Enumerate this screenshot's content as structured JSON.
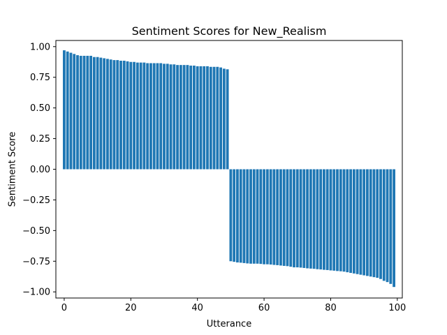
{
  "chart_data": {
    "type": "bar",
    "title": "Sentiment Scores for New_Realism",
    "xlabel": "Utterance",
    "ylabel": "Sentiment Score",
    "xlim": [
      -2.5,
      101.5
    ],
    "ylim": [
      -1.05,
      1.05
    ],
    "x_ticks": [
      0,
      20,
      40,
      60,
      80,
      100
    ],
    "y_ticks": [
      1.0,
      0.75,
      0.5,
      0.25,
      0.0,
      -0.25,
      -0.5,
      -0.75,
      -1.0
    ],
    "x_tick_labels": [
      "0",
      "20",
      "40",
      "60",
      "80",
      "100"
    ],
    "y_tick_labels": [
      "1.00",
      "0.75",
      "0.50",
      "0.25",
      "0.00",
      "−0.25",
      "−0.50",
      "−0.75",
      "−1.00"
    ],
    "bar_color": "#1f77b4",
    "grid": false,
    "legend": "none",
    "x": [
      0,
      1,
      2,
      3,
      4,
      5,
      6,
      7,
      8,
      9,
      10,
      11,
      12,
      13,
      14,
      15,
      16,
      17,
      18,
      19,
      20,
      21,
      22,
      23,
      24,
      25,
      26,
      27,
      28,
      29,
      30,
      31,
      32,
      33,
      34,
      35,
      36,
      37,
      38,
      39,
      40,
      41,
      42,
      43,
      44,
      45,
      46,
      47,
      48,
      49,
      50,
      51,
      52,
      53,
      54,
      55,
      56,
      57,
      58,
      59,
      60,
      61,
      62,
      63,
      64,
      65,
      66,
      67,
      68,
      69,
      70,
      71,
      72,
      73,
      74,
      75,
      76,
      77,
      78,
      79,
      80,
      81,
      82,
      83,
      84,
      85,
      86,
      87,
      88,
      89,
      90,
      91,
      92,
      93,
      94,
      95,
      96,
      97,
      98,
      99
    ],
    "values": [
      0.97,
      0.96,
      0.95,
      0.94,
      0.93,
      0.925,
      0.925,
      0.925,
      0.925,
      0.915,
      0.915,
      0.91,
      0.905,
      0.9,
      0.895,
      0.89,
      0.89,
      0.885,
      0.885,
      0.88,
      0.875,
      0.875,
      0.87,
      0.87,
      0.87,
      0.865,
      0.865,
      0.865,
      0.865,
      0.865,
      0.86,
      0.86,
      0.855,
      0.855,
      0.85,
      0.85,
      0.85,
      0.85,
      0.845,
      0.845,
      0.84,
      0.84,
      0.84,
      0.84,
      0.835,
      0.835,
      0.835,
      0.83,
      0.82,
      0.815,
      -0.75,
      -0.755,
      -0.76,
      -0.762,
      -0.765,
      -0.768,
      -0.77,
      -0.77,
      -0.77,
      -0.772,
      -0.775,
      -0.775,
      -0.777,
      -0.78,
      -0.782,
      -0.785,
      -0.788,
      -0.79,
      -0.795,
      -0.8,
      -0.8,
      -0.802,
      -0.805,
      -0.808,
      -0.81,
      -0.812,
      -0.815,
      -0.817,
      -0.82,
      -0.822,
      -0.825,
      -0.827,
      -0.83,
      -0.832,
      -0.835,
      -0.84,
      -0.845,
      -0.85,
      -0.855,
      -0.86,
      -0.865,
      -0.87,
      -0.875,
      -0.88,
      -0.885,
      -0.895,
      -0.91,
      -0.92,
      -0.935,
      -0.96
    ]
  }
}
